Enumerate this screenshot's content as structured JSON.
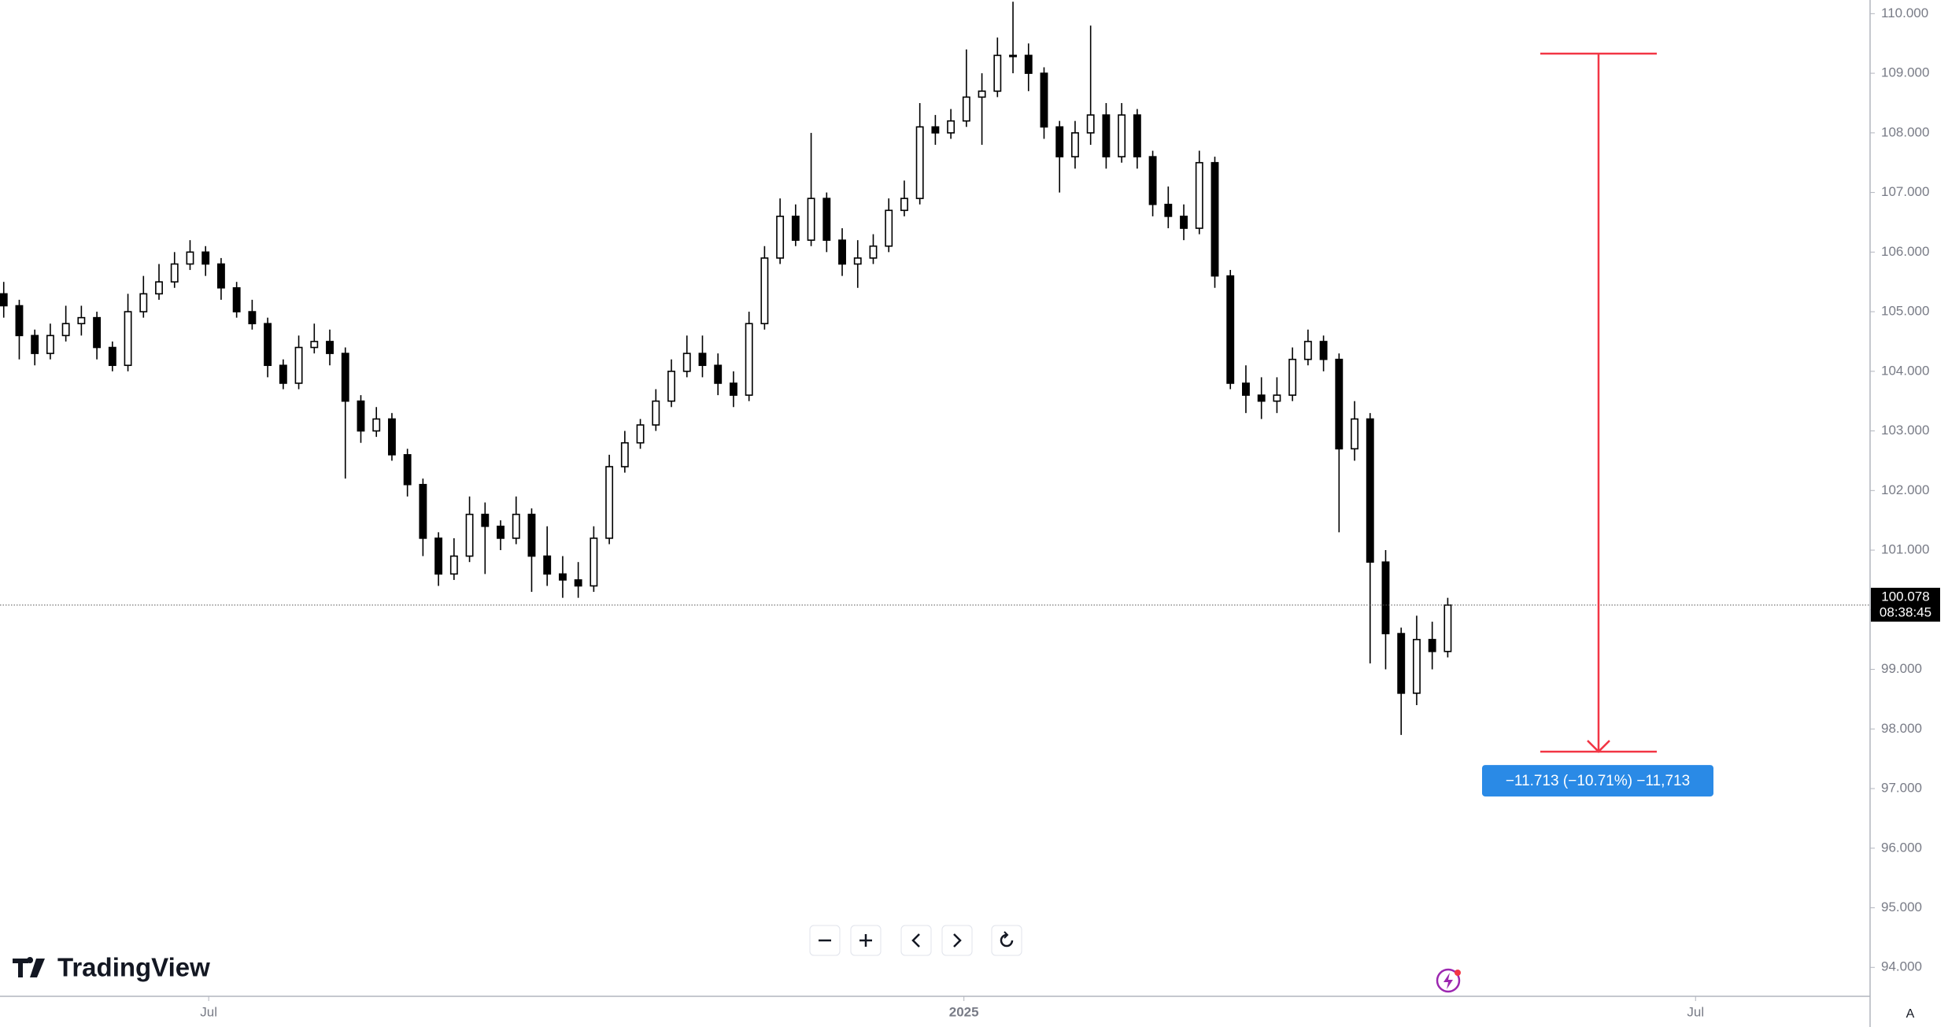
{
  "chart_data": {
    "type": "candlestick",
    "brand": "TradingView",
    "ylim": [
      93.515,
      110.229
    ],
    "yticks": [
      {
        "value": 94,
        "label": "94.000"
      },
      {
        "value": 95,
        "label": "95.000"
      },
      {
        "value": 96,
        "label": "96.000"
      },
      {
        "value": 97,
        "label": "97.000"
      },
      {
        "value": 98,
        "label": "98.000"
      },
      {
        "value": 99,
        "label": "99.000"
      },
      {
        "value": 100,
        "label": "100.000"
      },
      {
        "value": 101,
        "label": "101.000"
      },
      {
        "value": 102,
        "label": "102.000"
      },
      {
        "value": 103,
        "label": "103.000"
      },
      {
        "value": 104,
        "label": "104.000"
      },
      {
        "value": 105,
        "label": "105.000"
      },
      {
        "value": 106,
        "label": "106.000"
      },
      {
        "value": 107,
        "label": "107.000"
      },
      {
        "value": 108,
        "label": "108.000"
      },
      {
        "value": 109,
        "label": "109.000"
      },
      {
        "value": 110,
        "label": "110.000"
      }
    ],
    "xlim": [
      -0.24,
      120.2
    ],
    "xticks": [
      {
        "value": 13.2,
        "label": "Jul"
      },
      {
        "value": 61.84,
        "label": "2025"
      },
      {
        "value": 108.96,
        "label": "Jul"
      }
    ],
    "up_color": "#ffffff",
    "down_color": "#000000",
    "countdown": "08:38:45",
    "scale_mode": "A",
    "measure": {
      "from": 109.33,
      "to": 97.62,
      "label": "−11.713 (−10.71%) −11,713",
      "color": "#f23645",
      "label_color": "#2a8ae6"
    },
    "ohlc": [
      [
        105.3,
        105.5,
        104.9,
        105.1
      ],
      [
        105.1,
        105.2,
        104.2,
        104.6
      ],
      [
        104.6,
        104.7,
        104.1,
        104.3
      ],
      [
        104.3,
        104.8,
        104.2,
        104.6
      ],
      [
        104.6,
        105.1,
        104.5,
        104.8
      ],
      [
        104.8,
        105.1,
        104.6,
        104.9
      ],
      [
        104.9,
        105.0,
        104.2,
        104.4
      ],
      [
        104.4,
        104.5,
        104.0,
        104.1
      ],
      [
        104.1,
        105.3,
        104.0,
        105.0
      ],
      [
        105.0,
        105.6,
        104.9,
        105.3
      ],
      [
        105.3,
        105.8,
        105.2,
        105.5
      ],
      [
        105.5,
        106.0,
        105.4,
        105.8
      ],
      [
        105.8,
        106.2,
        105.7,
        106.0
      ],
      [
        106.0,
        106.1,
        105.6,
        105.8
      ],
      [
        105.8,
        105.9,
        105.2,
        105.4
      ],
      [
        105.4,
        105.5,
        104.9,
        105.0
      ],
      [
        105.0,
        105.2,
        104.7,
        104.8
      ],
      [
        104.8,
        104.9,
        103.9,
        104.1
      ],
      [
        104.1,
        104.2,
        103.7,
        103.8
      ],
      [
        103.8,
        104.6,
        103.7,
        104.4
      ],
      [
        104.4,
        104.8,
        104.3,
        104.5
      ],
      [
        104.5,
        104.7,
        104.1,
        104.3
      ],
      [
        104.3,
        104.4,
        102.2,
        103.5
      ],
      [
        103.5,
        103.6,
        102.8,
        103.0
      ],
      [
        103.0,
        103.4,
        102.9,
        103.2
      ],
      [
        103.2,
        103.3,
        102.5,
        102.6
      ],
      [
        102.6,
        102.7,
        101.9,
        102.1
      ],
      [
        102.1,
        102.2,
        100.9,
        101.2
      ],
      [
        101.2,
        101.3,
        100.4,
        100.6
      ],
      [
        100.6,
        101.2,
        100.5,
        100.9
      ],
      [
        100.9,
        101.9,
        100.8,
        101.6
      ],
      [
        101.6,
        101.8,
        100.6,
        101.4
      ],
      [
        101.4,
        101.5,
        101.0,
        101.2
      ],
      [
        101.2,
        101.9,
        101.1,
        101.6
      ],
      [
        101.6,
        101.7,
        100.3,
        100.9
      ],
      [
        100.9,
        101.4,
        100.4,
        100.6
      ],
      [
        100.6,
        100.9,
        100.2,
        100.5
      ],
      [
        100.5,
        100.8,
        100.2,
        100.4
      ],
      [
        100.4,
        101.4,
        100.3,
        101.2
      ],
      [
        101.2,
        102.6,
        101.1,
        102.4
      ],
      [
        102.4,
        103.0,
        102.3,
        102.8
      ],
      [
        102.8,
        103.2,
        102.7,
        103.1
      ],
      [
        103.1,
        103.7,
        103.0,
        103.5
      ],
      [
        103.5,
        104.2,
        103.4,
        104.0
      ],
      [
        104.0,
        104.6,
        103.9,
        104.3
      ],
      [
        104.3,
        104.6,
        103.9,
        104.1
      ],
      [
        104.1,
        104.3,
        103.6,
        103.8
      ],
      [
        103.8,
        104.0,
        103.4,
        103.6
      ],
      [
        103.6,
        105.0,
        103.5,
        104.8
      ],
      [
        104.8,
        106.1,
        104.7,
        105.9
      ],
      [
        105.9,
        106.9,
        105.8,
        106.6
      ],
      [
        106.6,
        106.8,
        106.1,
        106.2
      ],
      [
        106.2,
        108.0,
        106.1,
        106.9
      ],
      [
        106.9,
        107.0,
        106.0,
        106.2
      ],
      [
        106.2,
        106.4,
        105.6,
        105.8
      ],
      [
        105.8,
        106.2,
        105.4,
        105.9
      ],
      [
        105.9,
        106.3,
        105.8,
        106.1
      ],
      [
        106.1,
        106.9,
        106.0,
        106.7
      ],
      [
        106.7,
        107.2,
        106.6,
        106.9
      ],
      [
        106.9,
        108.5,
        106.8,
        108.1
      ],
      [
        108.1,
        108.3,
        107.8,
        108.0
      ],
      [
        108.0,
        108.4,
        107.9,
        108.2
      ],
      [
        108.2,
        109.4,
        108.1,
        108.6
      ],
      [
        108.6,
        109.0,
        107.8,
        108.7
      ],
      [
        108.7,
        109.6,
        108.6,
        109.3
      ],
      [
        109.3,
        110.2,
        109.0,
        109.3
      ],
      [
        109.3,
        109.5,
        108.7,
        109.0
      ],
      [
        109.0,
        109.1,
        107.9,
        108.1
      ],
      [
        108.1,
        108.2,
        107.0,
        107.6
      ],
      [
        107.6,
        108.2,
        107.4,
        108.0
      ],
      [
        108.0,
        109.8,
        107.8,
        108.3
      ],
      [
        108.3,
        108.5,
        107.4,
        107.6
      ],
      [
        107.6,
        108.5,
        107.5,
        108.3
      ],
      [
        108.3,
        108.4,
        107.4,
        107.6
      ],
      [
        107.6,
        107.7,
        106.6,
        106.8
      ],
      [
        106.8,
        107.1,
        106.4,
        106.6
      ],
      [
        106.6,
        106.8,
        106.2,
        106.4
      ],
      [
        106.4,
        107.7,
        106.3,
        107.5
      ],
      [
        107.5,
        107.6,
        105.4,
        105.6
      ],
      [
        105.6,
        105.7,
        103.7,
        103.8
      ],
      [
        103.8,
        104.1,
        103.3,
        103.6
      ],
      [
        103.6,
        103.9,
        103.2,
        103.5
      ],
      [
        103.5,
        103.9,
        103.3,
        103.6
      ],
      [
        103.6,
        104.4,
        103.5,
        104.2
      ],
      [
        104.2,
        104.7,
        104.1,
        104.5
      ],
      [
        104.5,
        104.6,
        104.0,
        104.2
      ],
      [
        104.2,
        104.3,
        101.3,
        102.7
      ],
      [
        102.7,
        103.5,
        102.5,
        103.2
      ],
      [
        103.2,
        103.3,
        99.1,
        100.8
      ],
      [
        100.8,
        101.0,
        99.0,
        99.6
      ],
      [
        99.6,
        99.7,
        97.9,
        98.6
      ],
      [
        98.6,
        99.9,
        98.4,
        99.5
      ],
      [
        99.5,
        99.8,
        99.0,
        99.3
      ],
      [
        99.3,
        100.2,
        99.2,
        100.078
      ]
    ]
  }
}
